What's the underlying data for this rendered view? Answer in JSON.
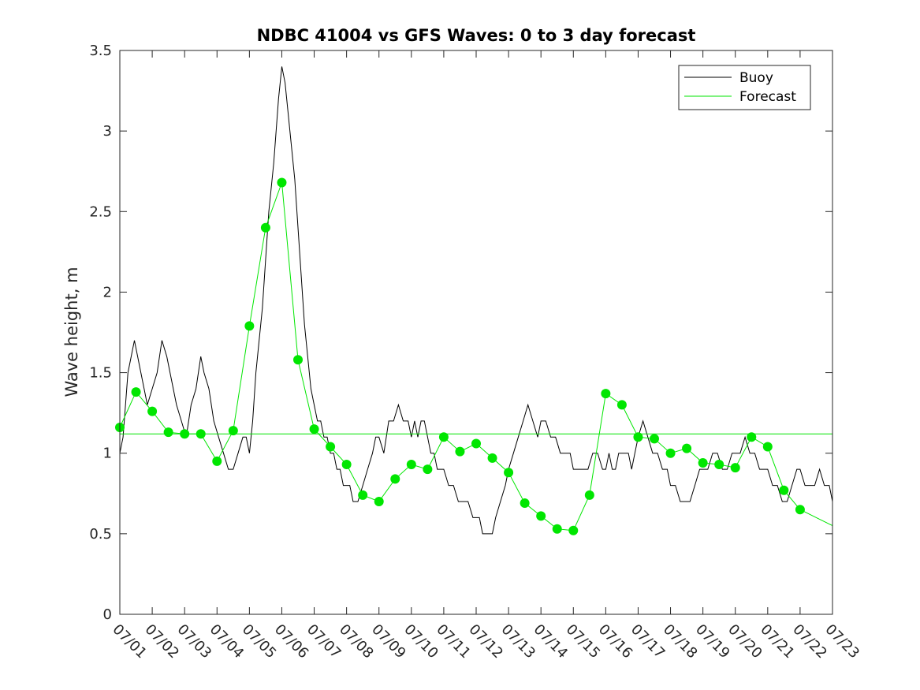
{
  "chart_data": {
    "type": "line",
    "title": "NDBC 41004 vs GFS Waves: 0 to 3 day forecast",
    "xlabel": "",
    "ylabel": "Wave height, m",
    "x_unit": "date (MM/DD)",
    "xlim": [
      "07/01",
      "07/23"
    ],
    "ylim": [
      0,
      3.5
    ],
    "x_ticks": [
      "07/01",
      "07/02",
      "07/03",
      "07/04",
      "07/05",
      "07/06",
      "07/07",
      "07/08",
      "07/09",
      "07/10",
      "07/11",
      "07/12",
      "07/13",
      "07/14",
      "07/15",
      "07/16",
      "07/17",
      "07/18",
      "07/19",
      "07/20",
      "07/21",
      "07/22",
      "07/23"
    ],
    "y_ticks": [
      "0",
      "0.5",
      "1",
      "1.5",
      "2",
      "2.5",
      "3",
      "3.5"
    ],
    "y_tick_values": [
      0,
      0.5,
      1,
      1.5,
      2,
      2.5,
      3,
      3.5
    ],
    "grid": false,
    "legend_position": "top-right",
    "legend": [
      {
        "label": "Buoy",
        "color": "#000000"
      },
      {
        "label": "Forecast",
        "color": "#00e600"
      }
    ],
    "series": [
      {
        "name": "Buoy",
        "color": "#000000",
        "x": [
          0,
          0.1,
          0.25,
          0.35,
          0.45,
          0.55,
          0.65,
          0.75,
          0.85,
          1.0,
          1.15,
          1.3,
          1.45,
          1.55,
          1.65,
          1.75,
          1.9,
          2.05,
          2.2,
          2.35,
          2.5,
          2.6,
          2.75,
          2.9,
          3.05,
          3.2,
          3.35,
          3.5,
          3.65,
          3.8,
          3.9,
          4.0,
          4.1,
          4.2,
          4.3,
          4.4,
          4.5,
          4.6,
          4.75,
          4.9,
          5.0,
          5.1,
          5.2,
          5.3,
          5.4,
          5.5,
          5.6,
          5.7,
          5.8,
          5.9,
          6.0,
          6.1,
          6.2,
          6.3,
          6.4,
          6.5,
          6.6,
          6.7,
          6.8,
          6.9,
          7.0,
          7.1,
          7.2,
          7.35,
          7.5,
          7.65,
          7.8,
          7.9,
          8.0,
          8.15,
          8.3,
          8.45,
          8.6,
          8.75,
          8.9,
          9.0,
          9.1,
          9.2,
          9.3,
          9.4,
          9.5,
          9.6,
          9.7,
          9.8,
          9.9,
          10.0,
          10.15,
          10.3,
          10.45,
          10.6,
          10.75,
          10.9,
          11.0,
          11.1,
          11.2,
          11.35,
          11.5,
          11.6,
          11.75,
          11.9,
          12.0,
          12.15,
          12.3,
          12.45,
          12.6,
          12.75,
          12.9,
          13.0,
          13.15,
          13.3,
          13.45,
          13.6,
          13.75,
          13.9,
          14.0,
          14.15,
          14.3,
          14.45,
          14.6,
          14.75,
          14.9,
          15.0,
          15.1,
          15.2,
          15.3,
          15.4,
          15.5,
          15.6,
          15.7,
          15.8,
          15.9,
          16.0,
          16.15,
          16.3,
          16.45,
          16.6,
          16.75,
          16.9,
          17.0,
          17.15,
          17.3,
          17.45,
          17.6,
          17.75,
          17.9,
          18.0,
          18.15,
          18.3,
          18.45,
          18.6,
          18.75,
          18.9,
          19.0,
          19.15,
          19.3,
          19.45,
          19.6,
          19.75,
          19.9,
          20.0,
          20.15,
          20.3,
          20.45,
          20.6,
          20.75,
          20.9,
          21.0,
          21.15,
          21.3,
          21.45,
          21.6,
          21.75,
          21.9,
          22.0
        ],
        "y": [
          1.0,
          1.1,
          1.5,
          1.6,
          1.7,
          1.6,
          1.5,
          1.4,
          1.3,
          1.4,
          1.5,
          1.7,
          1.6,
          1.5,
          1.4,
          1.3,
          1.2,
          1.1,
          1.3,
          1.4,
          1.6,
          1.5,
          1.4,
          1.2,
          1.1,
          1.0,
          0.9,
          0.9,
          1.0,
          1.1,
          1.1,
          1.0,
          1.2,
          1.5,
          1.7,
          1.9,
          2.2,
          2.5,
          2.8,
          3.2,
          3.4,
          3.3,
          3.1,
          2.9,
          2.7,
          2.4,
          2.1,
          1.8,
          1.6,
          1.4,
          1.3,
          1.2,
          1.2,
          1.1,
          1.1,
          1.0,
          1.0,
          0.9,
          0.9,
          0.8,
          0.8,
          0.8,
          0.7,
          0.7,
          0.8,
          0.9,
          1.0,
          1.1,
          1.1,
          1.0,
          1.2,
          1.2,
          1.3,
          1.2,
          1.2,
          1.1,
          1.2,
          1.1,
          1.2,
          1.2,
          1.1,
          1.0,
          1.0,
          0.9,
          0.9,
          0.9,
          0.8,
          0.8,
          0.7,
          0.7,
          0.7,
          0.6,
          0.6,
          0.6,
          0.5,
          0.5,
          0.5,
          0.6,
          0.7,
          0.8,
          0.9,
          1.0,
          1.1,
          1.2,
          1.3,
          1.2,
          1.1,
          1.2,
          1.2,
          1.1,
          1.1,
          1.0,
          1.0,
          1.0,
          0.9,
          0.9,
          0.9,
          0.9,
          1.0,
          1.0,
          0.9,
          0.9,
          1.0,
          0.9,
          0.9,
          1.0,
          1.0,
          1.0,
          1.0,
          0.9,
          1.0,
          1.1,
          1.2,
          1.1,
          1.0,
          1.0,
          0.9,
          0.9,
          0.8,
          0.8,
          0.7,
          0.7,
          0.7,
          0.8,
          0.9,
          0.9,
          0.9,
          1.0,
          1.0,
          0.9,
          0.9,
          1.0,
          1.0,
          1.0,
          1.1,
          1.0,
          1.0,
          0.9,
          0.9,
          0.9,
          0.8,
          0.8,
          0.7,
          0.7,
          0.8,
          0.9,
          0.9,
          0.8,
          0.8,
          0.8,
          0.9,
          0.8,
          0.8,
          0.7
        ]
      },
      {
        "name": "Forecast",
        "color": "#00e600",
        "x": [
          0,
          0.5,
          1,
          1.5,
          2,
          2.5,
          3,
          3.5,
          4,
          4.5,
          5,
          5.5,
          6,
          6.5,
          7,
          7.5,
          8,
          8.5,
          9,
          9.5,
          10,
          10.5,
          11,
          11.5,
          12,
          12.5,
          13,
          13.5,
          14,
          14.5,
          15,
          15.5,
          16,
          16.5,
          17,
          17.5,
          18,
          18.5,
          19,
          19.5,
          20,
          20.5,
          21,
          21.5,
          22
        ],
        "y": [
          1.16,
          1.38,
          1.26,
          1.13,
          1.12,
          1.12,
          0.95,
          1.14,
          1.79,
          2.4,
          2.68,
          1.58,
          1.15,
          1.04,
          0.93,
          0.74,
          0.7,
          0.84,
          0.93,
          0.9,
          1.1,
          1.01,
          1.06,
          0.97,
          0.88,
          0.69,
          0.61,
          0.53,
          0.52,
          0.74,
          1.37,
          1.3,
          1.1,
          1.09,
          1.0,
          1.03,
          0.94,
          0.93,
          0.91,
          1.1,
          1.04,
          0.77,
          0.65,
          0.6,
          0.55
        ],
        "markers_x": [
          0,
          0.5,
          1,
          1.5,
          2,
          2.5,
          3,
          3.5,
          4,
          4.5,
          5,
          5.5,
          6,
          6.5,
          7,
          7.5,
          8,
          8.5,
          9,
          9.5,
          10,
          10.5,
          11,
          11.5,
          12,
          12.5,
          13,
          13.5,
          14,
          14.5,
          15,
          15.5,
          16,
          16.5,
          17,
          17.5,
          18,
          18.5,
          19,
          19.5,
          20,
          20.5,
          21
        ],
        "markers_y": [
          1.16,
          1.38,
          1.26,
          1.13,
          1.12,
          1.12,
          0.95,
          1.14,
          1.79,
          2.4,
          2.68,
          1.58,
          1.15,
          1.04,
          0.93,
          0.74,
          0.7,
          0.84,
          0.93,
          0.9,
          1.1,
          1.01,
          1.06,
          0.97,
          0.88,
          0.69,
          0.61,
          0.53,
          0.52,
          0.74,
          1.37,
          1.3,
          1.1,
          1.09,
          1.0,
          1.03,
          0.94,
          0.93,
          0.91,
          1.1,
          1.04,
          0.77,
          0.65
        ]
      }
    ],
    "reference_line": {
      "y": 1.12,
      "x_range": [
        0,
        22
      ],
      "color": "#00e600"
    }
  }
}
